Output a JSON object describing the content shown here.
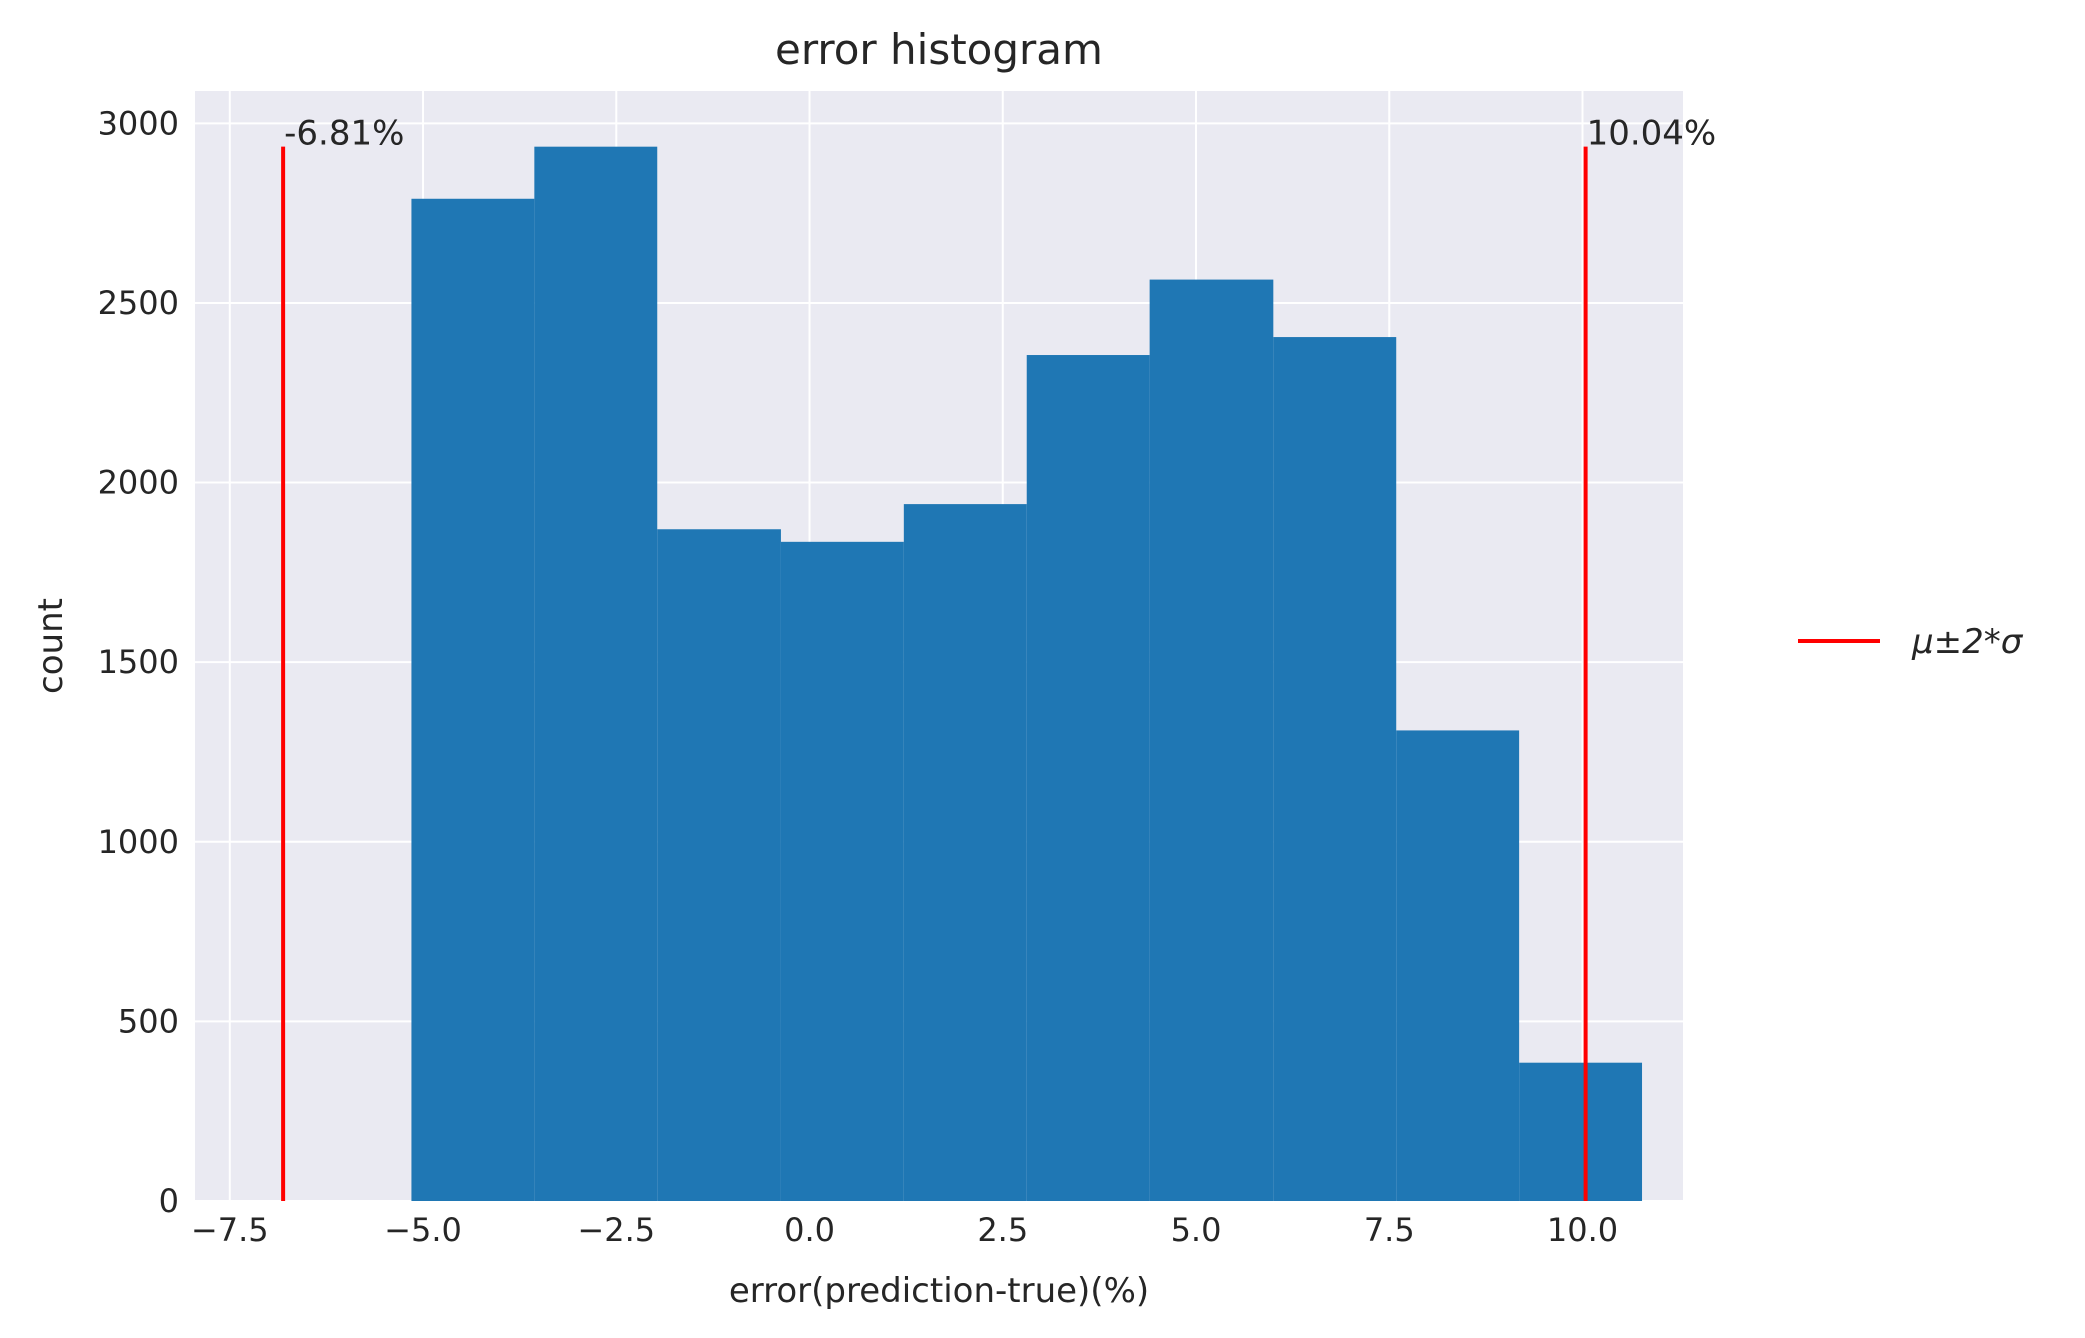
{
  "chart_data": {
    "type": "bar",
    "title": "error histogram",
    "xlabel": "error(prediction-true)(%)",
    "ylabel": "count",
    "xlim": [
      -7.95,
      11.3
    ],
    "ylim": [
      0,
      3090
    ],
    "xticks": [
      -7.5,
      -5.0,
      -2.5,
      0.0,
      2.5,
      5.0,
      7.5,
      10.0
    ],
    "xtick_labels": [
      "−7.5",
      "−5.0",
      "−2.5",
      "0.0",
      "2.5",
      "5.0",
      "7.5",
      "10.0"
    ],
    "yticks": [
      0,
      500,
      1000,
      1500,
      2000,
      2500,
      3000
    ],
    "ytick_labels": [
      "0",
      "500",
      "1000",
      "1500",
      "2000",
      "2500",
      "3000"
    ],
    "bin_edges": [
      -5.15,
      -3.56,
      -1.97,
      -0.37,
      1.22,
      2.81,
      4.4,
      6.0,
      7.59,
      9.18,
      10.77
    ],
    "counts": [
      2790,
      2935,
      1870,
      1835,
      1940,
      2355,
      2565,
      2405,
      1310,
      385
    ],
    "bar_color": "#1f77b4",
    "vlines": [
      {
        "x": -6.81,
        "ymax": 2935,
        "label": "-6.81%"
      },
      {
        "x": 10.04,
        "ymax": 2935,
        "label": "10.04%"
      }
    ],
    "vline_color": "#ff0000",
    "legend": {
      "label": "μ±2*σ",
      "placement": "center-right outside"
    },
    "grid": true,
    "facecolor": "#eaeaf2"
  }
}
